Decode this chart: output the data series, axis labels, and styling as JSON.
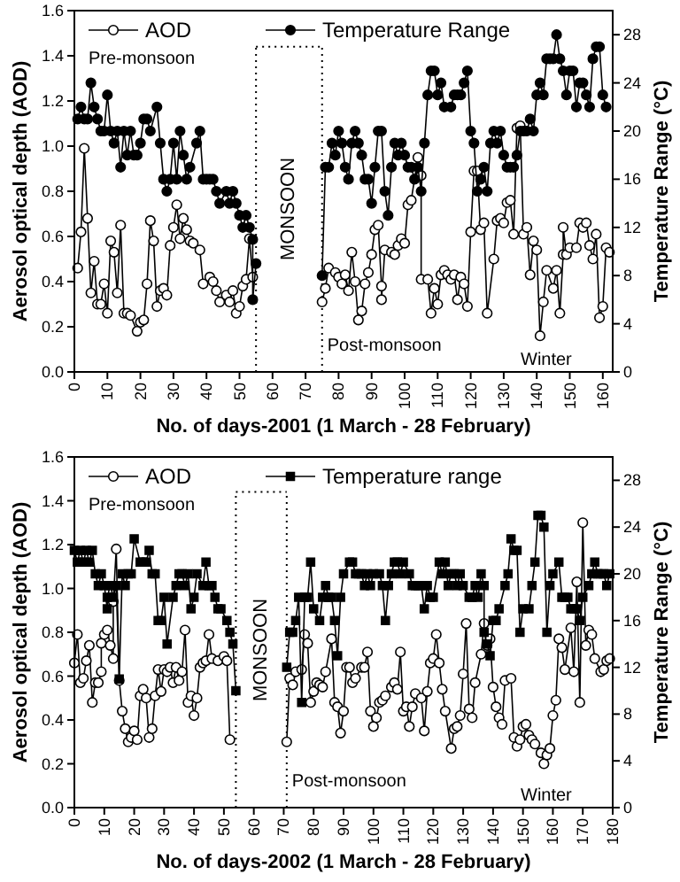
{
  "chart_data": [
    {
      "type": "line",
      "xlabel": "No. of days-2001 (1 March - 28 February)",
      "ylabel": "Aerosol optical depth (AOD)",
      "y2label": "Temperature Range (°C)",
      "legend": "top",
      "xlim": [
        0,
        163
      ],
      "xticks": [
        0,
        10,
        20,
        30,
        40,
        50,
        60,
        70,
        80,
        90,
        100,
        110,
        120,
        130,
        140,
        150,
        160
      ],
      "ylim": [
        0,
        1.6
      ],
      "yticks": [
        {
          "value": 0,
          "label": "0.0"
        },
        {
          "value": 0.2,
          "label": "0.2"
        },
        {
          "value": 0.4,
          "label": "0.4"
        },
        {
          "value": 0.6,
          "label": "0.6"
        },
        {
          "value": 0.8,
          "label": "0.8"
        },
        {
          "value": 1,
          "label": "1.0"
        },
        {
          "value": 1.2,
          "label": "1.2"
        },
        {
          "value": 1.4,
          "label": "1.4"
        },
        {
          "value": 1.6,
          "label": "1.6"
        }
      ],
      "y2lim": [
        0,
        30
      ],
      "y2ticks": [
        0,
        4,
        8,
        12,
        16,
        20,
        24,
        28
      ],
      "ref_lines": [
        {
          "axis": "x",
          "value": 55,
          "line_style": "dotted"
        },
        {
          "axis": "x",
          "value": 75,
          "line_style": "dotted"
        }
      ],
      "annotations": [
        "Pre-monsoon",
        "MONSOON",
        "Post-monsoon",
        "Winter"
      ],
      "series": [
        {
          "name": "AOD",
          "color": "#000000",
          "marker": "circle",
          "x": [
            1,
            2,
            3,
            4,
            5,
            6,
            7,
            8,
            9,
            10,
            11,
            12,
            13,
            14,
            15,
            16,
            17,
            19,
            20,
            21,
            22,
            23,
            24,
            25,
            26,
            27,
            28,
            29,
            30,
            31,
            32,
            33,
            34,
            35,
            36,
            38,
            39,
            41,
            42,
            43,
            44,
            46,
            47,
            48,
            49,
            50,
            51,
            52,
            53,
            54,
            65,
            75,
            76,
            77,
            79,
            80,
            81,
            82,
            83,
            84,
            85,
            86,
            87,
            88,
            89,
            90,
            91,
            92,
            93,
            93,
            94,
            96,
            97,
            98,
            99,
            100,
            101,
            102,
            104,
            105,
            105,
            107,
            108,
            109,
            110,
            111,
            112,
            113,
            114,
            115,
            116,
            117,
            118,
            119,
            120,
            121,
            122,
            123,
            124,
            125,
            127,
            128,
            129,
            130,
            131,
            132,
            133,
            134,
            135,
            136,
            137,
            138,
            139,
            140,
            141,
            142,
            143,
            145,
            146,
            147,
            148,
            148,
            149,
            150,
            152,
            153,
            154,
            155,
            156,
            157,
            158,
            159,
            160,
            161,
            162
          ],
          "values": [
            0.46,
            0.62,
            0.99,
            0.68,
            0.35,
            0.49,
            0.3,
            0.3,
            0.39,
            0.26,
            0.58,
            0.53,
            0.35,
            0.65,
            0.26,
            0.26,
            0.25,
            0.18,
            0.22,
            0.23,
            0.39,
            0.67,
            0.58,
            0.29,
            0.36,
            0.37,
            0.34,
            0.56,
            0.64,
            0.74,
            0.59,
            0.68,
            0.63,
            0.58,
            0.57,
            0.54,
            0.39,
            0.42,
            0.4,
            0.36,
            0.31,
            0.34,
            0.31,
            0.36,
            0.26,
            0.29,
            0.38,
            0.41,
            0.59,
            0.42,
            null,
            0.31,
            0.37,
            0.46,
            0.44,
            0.42,
            0.39,
            0.43,
            0.36,
            0.53,
            0.4,
            0.23,
            0.27,
            0.39,
            0.44,
            0.52,
            0.63,
            0.65,
            0.38,
            0.32,
            0.54,
            0.53,
            0.52,
            0.56,
            0.59,
            0.57,
            0.74,
            0.76,
            0.95,
            0.87,
            0.41,
            0.41,
            0.26,
            0.37,
            0.3,
            0.43,
            0.45,
            0.43,
            0.41,
            0.43,
            0.32,
            0.42,
            0.39,
            0.29,
            0.62,
            0.89,
            0.89,
            0.63,
            0.66,
            0.26,
            0.5,
            0.67,
            0.68,
            0.66,
            0.75,
            0.76,
            0.61,
            1.08,
            1.09,
            0.61,
            0.64,
            0.43,
            0.58,
            0.54,
            0.16,
            0.31,
            0.45,
            0.37,
            0.45,
            0.26,
            0.52,
            0.64,
            0.52,
            0.55,
            0.55,
            0.66,
            0.64,
            0.66,
            0.56,
            0.5,
            0.61,
            0.24,
            0.29,
            0.55,
            0.53
          ]
        },
        {
          "name": "Temperature Range",
          "color": "#000000",
          "marker": "circle",
          "axis": "y2",
          "x": [
            1,
            2,
            3,
            4,
            5,
            6,
            7,
            8,
            9,
            10,
            11,
            12,
            13,
            14,
            15,
            16,
            17,
            18,
            19,
            20,
            21,
            22,
            23,
            25,
            26,
            27,
            28,
            29,
            30,
            31,
            32,
            33,
            34,
            35,
            37,
            38,
            39,
            40,
            41,
            42,
            43,
            44,
            46,
            47,
            48,
            49,
            50,
            51,
            52,
            53,
            54,
            54,
            55,
            65,
            75,
            76,
            77,
            78,
            79,
            80,
            81,
            82,
            83,
            84,
            85,
            86,
            87,
            88,
            89,
            90,
            91,
            92,
            93,
            94,
            95,
            96,
            97,
            98,
            99,
            100,
            101,
            102,
            103,
            104,
            105,
            106,
            107,
            108,
            109,
            110,
            111,
            112,
            114,
            115,
            116,
            117,
            118,
            119,
            120,
            121,
            122,
            123,
            124,
            125,
            126,
            127,
            128,
            129,
            130,
            131,
            132,
            133,
            134,
            135,
            136,
            137,
            138,
            139,
            140,
            141,
            142,
            143,
            144,
            145,
            146,
            147,
            148,
            149,
            150,
            151,
            152,
            153,
            154,
            155,
            156,
            157,
            158,
            159,
            160,
            161
          ],
          "values": [
            21,
            22,
            21,
            21,
            24,
            22,
            21,
            20,
            20,
            23,
            20,
            19,
            20,
            17,
            20,
            18,
            20,
            18,
            18,
            19,
            21,
            21,
            20,
            22,
            19,
            16,
            15,
            16,
            19,
            16,
            20,
            18,
            16,
            17,
            19,
            20,
            16,
            16,
            16,
            16,
            15,
            14,
            15,
            14,
            15,
            14,
            13,
            12,
            13,
            12,
            11,
            6,
            9,
            null,
            8,
            17,
            17,
            19,
            18,
            20,
            19,
            17,
            16,
            19,
            20,
            19,
            18,
            16,
            16,
            14,
            17,
            20,
            20,
            15,
            13,
            17,
            19,
            18,
            19,
            18,
            17,
            17,
            16,
            17,
            15,
            19,
            23,
            25,
            25,
            23,
            24,
            22,
            22,
            23,
            23,
            23,
            24,
            25,
            20,
            19,
            15,
            16,
            17,
            15,
            19,
            20,
            19,
            20,
            18,
            17,
            17,
            17,
            18,
            20,
            20,
            20,
            21,
            20,
            23,
            24,
            23,
            26,
            26,
            26,
            28,
            26,
            25,
            23,
            25,
            25,
            22,
            24,
            24,
            23,
            22,
            26,
            27,
            27,
            23,
            22
          ]
        }
      ]
    },
    {
      "type": "line",
      "xlabel": "No. of days-2002 (1 March - 28 February)",
      "ylabel": "Aerosol optical depth (AOD)",
      "y2label": "Temperature Range (°C)",
      "legend": "top",
      "xlim": [
        0,
        180
      ],
      "xticks": [
        0,
        10,
        20,
        30,
        40,
        50,
        60,
        70,
        80,
        90,
        100,
        110,
        120,
        130,
        140,
        150,
        160,
        170,
        180
      ],
      "ylim": [
        0,
        1.6
      ],
      "yticks": [
        {
          "value": 0,
          "label": "0.0"
        },
        {
          "value": 0.2,
          "label": "0.2"
        },
        {
          "value": 0.4,
          "label": "0.4"
        },
        {
          "value": 0.6,
          "label": "0.6"
        },
        {
          "value": 0.8,
          "label": "0.8"
        },
        {
          "value": 1,
          "label": "1.0"
        },
        {
          "value": 1.2,
          "label": "1.2"
        },
        {
          "value": 1.4,
          "label": "1.4"
        },
        {
          "value": 1.6,
          "label": "1.6"
        }
      ],
      "y2lim": [
        0,
        30
      ],
      "y2ticks": [
        0,
        4,
        8,
        12,
        16,
        20,
        24,
        28
      ],
      "ref_lines": [
        {
          "axis": "x",
          "value": 54,
          "line_style": "dotted"
        },
        {
          "axis": "x",
          "value": 71,
          "line_style": "dotted"
        }
      ],
      "annotations": [
        "Pre-monsoon",
        "MONSOON",
        "Post-monsoon",
        "Winter"
      ],
      "series": [
        {
          "name": "AOD",
          "color": "#000000",
          "marker": "circle",
          "x": [
            0,
            1,
            2,
            3,
            4,
            5,
            6,
            7,
            8,
            9,
            9,
            10,
            11,
            12,
            13,
            13,
            14,
            15,
            16,
            17,
            18,
            19,
            20,
            21,
            22,
            23,
            24,
            25,
            26,
            27,
            28,
            29,
            30,
            31,
            32,
            33,
            34,
            35,
            36,
            37,
            38,
            39,
            40,
            41,
            42,
            43,
            44,
            45,
            46,
            48,
            50,
            51,
            52,
            62,
            71,
            72,
            73,
            74,
            76,
            77,
            78,
            79,
            80,
            81,
            82,
            83,
            84,
            86,
            87,
            88,
            89,
            90,
            91,
            92,
            93,
            94,
            96,
            97,
            98,
            99,
            100,
            101,
            102,
            103,
            104,
            106,
            107,
            108,
            109,
            110,
            111,
            112,
            113,
            114,
            116,
            117,
            118,
            119,
            120,
            121,
            122,
            123,
            124,
            126,
            127,
            128,
            129,
            130,
            131,
            132,
            133,
            134,
            136,
            137,
            138,
            139,
            140,
            141,
            142,
            143,
            144,
            146,
            147,
            148,
            149,
            150,
            151,
            152,
            153,
            154,
            156,
            157,
            158,
            159,
            160,
            161,
            162,
            163,
            164,
            166,
            167,
            168,
            169,
            170,
            171,
            172,
            173,
            174,
            176,
            177,
            178,
            179
          ],
          "values": [
            0.66,
            0.79,
            0.57,
            0.59,
            0.67,
            0.74,
            0.48,
            0.57,
            0.57,
            0.62,
            0.75,
            0.79,
            0.81,
            0.74,
            0.68,
            0.94,
            1.18,
            0.58,
            0.44,
            0.36,
            0.3,
            0.32,
            0.35,
            0.31,
            0.51,
            0.54,
            0.5,
            0.32,
            0.36,
            0.51,
            0.63,
            0.53,
            0.63,
            0.62,
            0.64,
            0.57,
            0.64,
            0.58,
            0.62,
            0.81,
            0.48,
            0.51,
            0.42,
            0.5,
            0.64,
            0.66,
            0.67,
            0.79,
            0.68,
            0.67,
            0.69,
            0.67,
            0.31,
            null,
            0.3,
            0.59,
            0.56,
            0.62,
            0.63,
            0.79,
            0.75,
            0.48,
            0.53,
            0.57,
            0.56,
            0.55,
            0.62,
            0.77,
            0.48,
            0.46,
            0.34,
            0.44,
            0.64,
            0.64,
            0.57,
            0.59,
            0.64,
            0.64,
            0.71,
            0.44,
            0.37,
            0.41,
            0.48,
            0.49,
            0.51,
            0.55,
            0.57,
            0.54,
            0.71,
            0.44,
            0.46,
            0.37,
            0.46,
            0.52,
            0.5,
            0.35,
            0.53,
            0.66,
            0.68,
            0.79,
            0.66,
            0.54,
            0.44,
            0.27,
            0.36,
            0.37,
            0.42,
            0.61,
            0.84,
            0.45,
            0.41,
            0.57,
            0.7,
            0.84,
            0.74,
            0.77,
            0.55,
            0.46,
            0.41,
            0.38,
            0.58,
            0.59,
            0.32,
            0.28,
            0.31,
            0.37,
            0.38,
            0.33,
            0.31,
            0.29,
            0.25,
            0.2,
            0.24,
            0.27,
            0.42,
            0.49,
            0.77,
            0.73,
            0.63,
            0.82,
            0.62,
            1.03,
            0.48,
            1.3,
            0.74,
            0.81,
            0.79,
            0.68,
            0.62,
            0.63,
            0.67,
            0.68
          ]
        },
        {
          "name": "Temperature range",
          "color": "#000000",
          "marker": "square",
          "axis": "y2",
          "x": [
            0,
            1,
            2,
            3,
            4,
            5,
            6,
            7,
            8,
            9,
            10,
            11,
            11,
            12,
            13,
            14,
            15,
            16,
            17,
            18,
            19,
            20,
            22,
            23,
            24,
            25,
            26,
            27,
            28,
            29,
            30,
            31,
            33,
            34,
            35,
            36,
            37,
            38,
            39,
            40,
            41,
            43,
            44,
            45,
            46,
            47,
            48,
            49,
            51,
            52,
            53,
            54,
            62,
            71,
            72,
            73,
            74,
            75,
            76,
            77,
            78,
            79,
            80,
            82,
            83,
            84,
            85,
            86,
            87,
            88,
            89,
            90,
            92,
            93,
            94,
            95,
            96,
            97,
            98,
            99,
            100,
            102,
            103,
            104,
            105,
            106,
            107,
            108,
            109,
            110,
            112,
            113,
            114,
            115,
            116,
            117,
            118,
            119,
            120,
            122,
            123,
            124,
            125,
            126,
            127,
            128,
            129,
            130,
            132,
            133,
            134,
            135,
            136,
            137,
            137,
            138,
            139,
            140,
            141,
            142,
            144,
            145,
            146,
            147,
            148,
            149,
            150,
            152,
            153,
            154,
            155,
            156,
            157,
            158,
            159,
            160,
            162,
            163,
            164,
            165,
            166,
            167,
            168,
            169,
            170,
            172,
            173,
            174,
            175,
            176,
            177,
            178,
            179
          ],
          "values": [
            22,
            21,
            22,
            21,
            22,
            21,
            22,
            20,
            19,
            20,
            19,
            17,
            18,
            19,
            18,
            19,
            11,
            20,
            19,
            20,
            20,
            23,
            21,
            21,
            21,
            22,
            20,
            20,
            16,
            16,
            18,
            14,
            18,
            19,
            20,
            20,
            19,
            20,
            17,
            18,
            20,
            19,
            21,
            19,
            19,
            18,
            17,
            17,
            16,
            15,
            14,
            10,
            null,
            12,
            15,
            15,
            16,
            18,
            9,
            18,
            18,
            21,
            17,
            16,
            18,
            19,
            18,
            18,
            16,
            13,
            18,
            20,
            21,
            21,
            20,
            20,
            20,
            19,
            20,
            19,
            20,
            20,
            19,
            16,
            19,
            20,
            21,
            21,
            20,
            21,
            20,
            19,
            19,
            19,
            19,
            17,
            19,
            18,
            18,
            21,
            20,
            21,
            19,
            20,
            20,
            19,
            20,
            19,
            18,
            18,
            19,
            18,
            20,
            19,
            15,
            14,
            13,
            16,
            16,
            17,
            19,
            20,
            23,
            22,
            22,
            15,
            17,
            17,
            19,
            21,
            25,
            25,
            24,
            15,
            19,
            20,
            21,
            18,
            18,
            18,
            17,
            17,
            17,
            16,
            18,
            19,
            20,
            21,
            20,
            20,
            20,
            19,
            20
          ]
        }
      ]
    }
  ]
}
